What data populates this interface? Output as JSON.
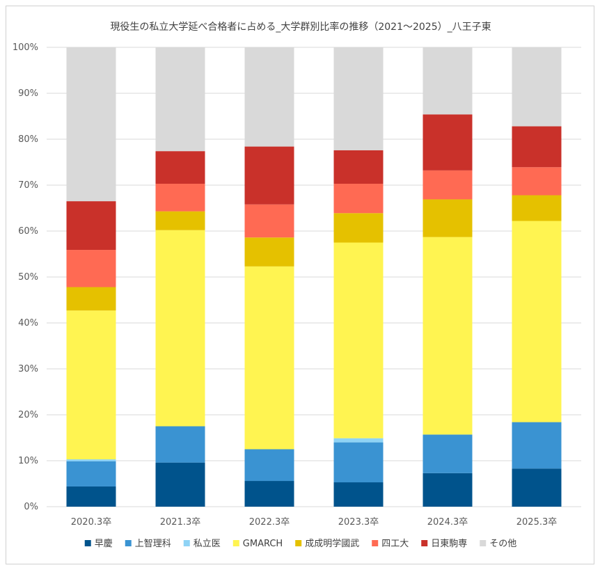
{
  "chart_data": {
    "type": "bar",
    "stacked": true,
    "title": "現役生の私立大学延べ合格者に占める_大学群別比率の推移（2021～2025）_八王子東",
    "categories": [
      "2020.3卒",
      "2021.3卒",
      "2022.3卒",
      "2023.3卒",
      "2024.3卒",
      "2025.3卒"
    ],
    "ylim": [
      0,
      100
    ],
    "yticks": [
      "0%",
      "10%",
      "20%",
      "30%",
      "40%",
      "50%",
      "60%",
      "70%",
      "80%",
      "90%",
      "100%"
    ],
    "grid": true,
    "legend_position": "bottom",
    "series": [
      {
        "name": "早慶",
        "color": "#00538c",
        "values": [
          4.4,
          9.6,
          5.6,
          5.3,
          7.3,
          8.3
        ]
      },
      {
        "name": "上智理科",
        "color": "#3a93d2",
        "values": [
          5.5,
          7.9,
          6.9,
          8.7,
          8.4,
          10.1
        ]
      },
      {
        "name": "私立医",
        "color": "#8fd3f5",
        "values": [
          0.4,
          0.0,
          0.0,
          0.9,
          0.0,
          0.0
        ]
      },
      {
        "name": "GMARCH",
        "color": "#fff451",
        "values": [
          32.4,
          42.7,
          39.8,
          42.6,
          43.0,
          43.8
        ]
      },
      {
        "name": "成成明学國武",
        "color": "#e5c100",
        "values": [
          5.1,
          4.1,
          6.3,
          6.4,
          8.2,
          5.6
        ]
      },
      {
        "name": "四工大",
        "color": "#ff6a53",
        "values": [
          8.1,
          6.0,
          7.2,
          6.4,
          6.3,
          6.1
        ]
      },
      {
        "name": "日東駒専",
        "color": "#c9312a",
        "values": [
          10.6,
          7.1,
          12.6,
          7.3,
          12.2,
          8.9
        ]
      },
      {
        "name": "その他",
        "color": "#d9d9d9",
        "values": [
          33.5,
          22.6,
          21.6,
          22.4,
          14.6,
          17.2
        ]
      }
    ]
  }
}
